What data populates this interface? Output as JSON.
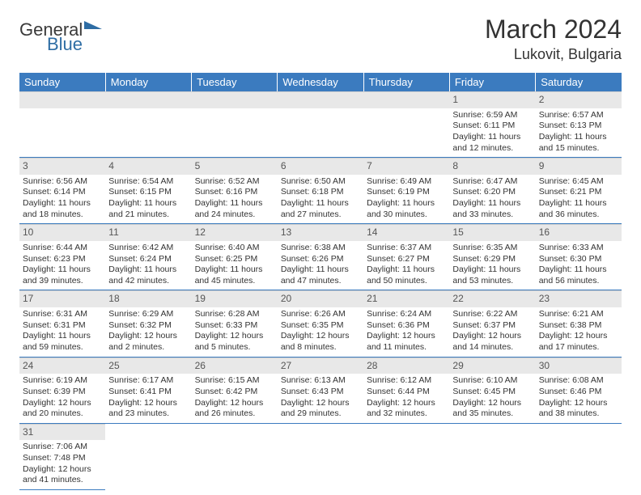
{
  "logo": {
    "general": "General",
    "blue": "Blue"
  },
  "title": "March 2024",
  "location": "Lukovit, Bulgaria",
  "colors": {
    "header_bg": "#3b7bbf",
    "header_text": "#ffffff",
    "daynum_bg": "#e8e8e8",
    "divider": "#3b7bbf"
  },
  "weekdays": [
    "Sunday",
    "Monday",
    "Tuesday",
    "Wednesday",
    "Thursday",
    "Friday",
    "Saturday"
  ],
  "weeks": [
    [
      null,
      null,
      null,
      null,
      null,
      {
        "n": "1",
        "sunrise": "Sunrise: 6:59 AM",
        "sunset": "Sunset: 6:11 PM",
        "daylight": "Daylight: 11 hours and 12 minutes."
      },
      {
        "n": "2",
        "sunrise": "Sunrise: 6:57 AM",
        "sunset": "Sunset: 6:13 PM",
        "daylight": "Daylight: 11 hours and 15 minutes."
      }
    ],
    [
      {
        "n": "3",
        "sunrise": "Sunrise: 6:56 AM",
        "sunset": "Sunset: 6:14 PM",
        "daylight": "Daylight: 11 hours and 18 minutes."
      },
      {
        "n": "4",
        "sunrise": "Sunrise: 6:54 AM",
        "sunset": "Sunset: 6:15 PM",
        "daylight": "Daylight: 11 hours and 21 minutes."
      },
      {
        "n": "5",
        "sunrise": "Sunrise: 6:52 AM",
        "sunset": "Sunset: 6:16 PM",
        "daylight": "Daylight: 11 hours and 24 minutes."
      },
      {
        "n": "6",
        "sunrise": "Sunrise: 6:50 AM",
        "sunset": "Sunset: 6:18 PM",
        "daylight": "Daylight: 11 hours and 27 minutes."
      },
      {
        "n": "7",
        "sunrise": "Sunrise: 6:49 AM",
        "sunset": "Sunset: 6:19 PM",
        "daylight": "Daylight: 11 hours and 30 minutes."
      },
      {
        "n": "8",
        "sunrise": "Sunrise: 6:47 AM",
        "sunset": "Sunset: 6:20 PM",
        "daylight": "Daylight: 11 hours and 33 minutes."
      },
      {
        "n": "9",
        "sunrise": "Sunrise: 6:45 AM",
        "sunset": "Sunset: 6:21 PM",
        "daylight": "Daylight: 11 hours and 36 minutes."
      }
    ],
    [
      {
        "n": "10",
        "sunrise": "Sunrise: 6:44 AM",
        "sunset": "Sunset: 6:23 PM",
        "daylight": "Daylight: 11 hours and 39 minutes."
      },
      {
        "n": "11",
        "sunrise": "Sunrise: 6:42 AM",
        "sunset": "Sunset: 6:24 PM",
        "daylight": "Daylight: 11 hours and 42 minutes."
      },
      {
        "n": "12",
        "sunrise": "Sunrise: 6:40 AM",
        "sunset": "Sunset: 6:25 PM",
        "daylight": "Daylight: 11 hours and 45 minutes."
      },
      {
        "n": "13",
        "sunrise": "Sunrise: 6:38 AM",
        "sunset": "Sunset: 6:26 PM",
        "daylight": "Daylight: 11 hours and 47 minutes."
      },
      {
        "n": "14",
        "sunrise": "Sunrise: 6:37 AM",
        "sunset": "Sunset: 6:27 PM",
        "daylight": "Daylight: 11 hours and 50 minutes."
      },
      {
        "n": "15",
        "sunrise": "Sunrise: 6:35 AM",
        "sunset": "Sunset: 6:29 PM",
        "daylight": "Daylight: 11 hours and 53 minutes."
      },
      {
        "n": "16",
        "sunrise": "Sunrise: 6:33 AM",
        "sunset": "Sunset: 6:30 PM",
        "daylight": "Daylight: 11 hours and 56 minutes."
      }
    ],
    [
      {
        "n": "17",
        "sunrise": "Sunrise: 6:31 AM",
        "sunset": "Sunset: 6:31 PM",
        "daylight": "Daylight: 11 hours and 59 minutes."
      },
      {
        "n": "18",
        "sunrise": "Sunrise: 6:29 AM",
        "sunset": "Sunset: 6:32 PM",
        "daylight": "Daylight: 12 hours and 2 minutes."
      },
      {
        "n": "19",
        "sunrise": "Sunrise: 6:28 AM",
        "sunset": "Sunset: 6:33 PM",
        "daylight": "Daylight: 12 hours and 5 minutes."
      },
      {
        "n": "20",
        "sunrise": "Sunrise: 6:26 AM",
        "sunset": "Sunset: 6:35 PM",
        "daylight": "Daylight: 12 hours and 8 minutes."
      },
      {
        "n": "21",
        "sunrise": "Sunrise: 6:24 AM",
        "sunset": "Sunset: 6:36 PM",
        "daylight": "Daylight: 12 hours and 11 minutes."
      },
      {
        "n": "22",
        "sunrise": "Sunrise: 6:22 AM",
        "sunset": "Sunset: 6:37 PM",
        "daylight": "Daylight: 12 hours and 14 minutes."
      },
      {
        "n": "23",
        "sunrise": "Sunrise: 6:21 AM",
        "sunset": "Sunset: 6:38 PM",
        "daylight": "Daylight: 12 hours and 17 minutes."
      }
    ],
    [
      {
        "n": "24",
        "sunrise": "Sunrise: 6:19 AM",
        "sunset": "Sunset: 6:39 PM",
        "daylight": "Daylight: 12 hours and 20 minutes."
      },
      {
        "n": "25",
        "sunrise": "Sunrise: 6:17 AM",
        "sunset": "Sunset: 6:41 PM",
        "daylight": "Daylight: 12 hours and 23 minutes."
      },
      {
        "n": "26",
        "sunrise": "Sunrise: 6:15 AM",
        "sunset": "Sunset: 6:42 PM",
        "daylight": "Daylight: 12 hours and 26 minutes."
      },
      {
        "n": "27",
        "sunrise": "Sunrise: 6:13 AM",
        "sunset": "Sunset: 6:43 PM",
        "daylight": "Daylight: 12 hours and 29 minutes."
      },
      {
        "n": "28",
        "sunrise": "Sunrise: 6:12 AM",
        "sunset": "Sunset: 6:44 PM",
        "daylight": "Daylight: 12 hours and 32 minutes."
      },
      {
        "n": "29",
        "sunrise": "Sunrise: 6:10 AM",
        "sunset": "Sunset: 6:45 PM",
        "daylight": "Daylight: 12 hours and 35 minutes."
      },
      {
        "n": "30",
        "sunrise": "Sunrise: 6:08 AM",
        "sunset": "Sunset: 6:46 PM",
        "daylight": "Daylight: 12 hours and 38 minutes."
      }
    ],
    [
      {
        "n": "31",
        "sunrise": "Sunrise: 7:06 AM",
        "sunset": "Sunset: 7:48 PM",
        "daylight": "Daylight: 12 hours and 41 minutes."
      },
      null,
      null,
      null,
      null,
      null,
      null
    ]
  ]
}
